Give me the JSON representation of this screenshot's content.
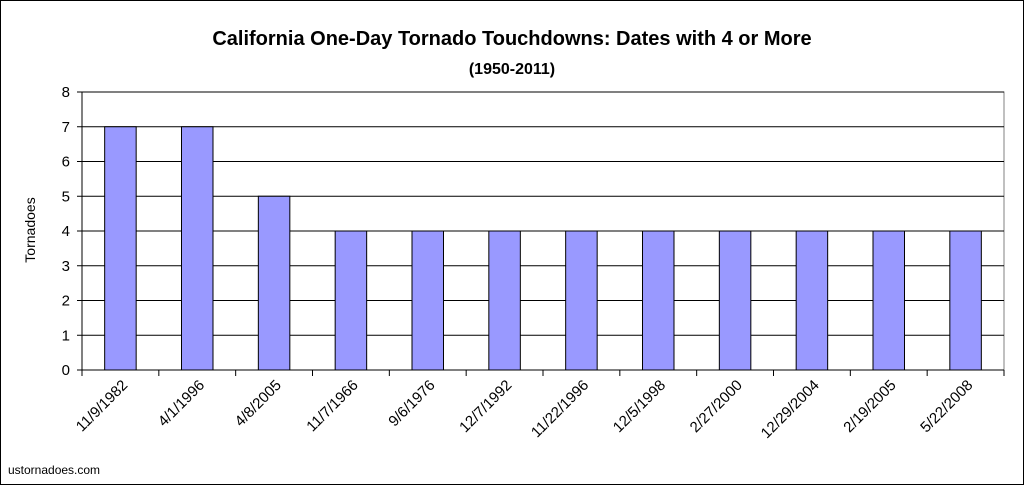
{
  "chart_data": {
    "type": "bar",
    "title": "California One-Day Tornado Touchdowns: Dates with 4 or More",
    "subtitle": "(1950-2011)",
    "xlabel": "",
    "ylabel": "Tornadoes",
    "ylim": [
      0,
      8
    ],
    "yticks": [
      0,
      1,
      2,
      3,
      4,
      5,
      6,
      7,
      8
    ],
    "categories": [
      "11/9/1982",
      "4/1/1996",
      "4/8/2005",
      "11/7/1966",
      "9/6/1976",
      "12/7/1992",
      "11/22/1996",
      "12/5/1998",
      "2/27/2000",
      "12/29/2004",
      "2/19/2005",
      "5/22/2008"
    ],
    "values": [
      7,
      7,
      5,
      4,
      4,
      4,
      4,
      4,
      4,
      4,
      4,
      4
    ],
    "grid": true,
    "legend": "none",
    "bar_color": "#9999ff"
  },
  "footer": {
    "credit": "ustornadoes.com"
  }
}
